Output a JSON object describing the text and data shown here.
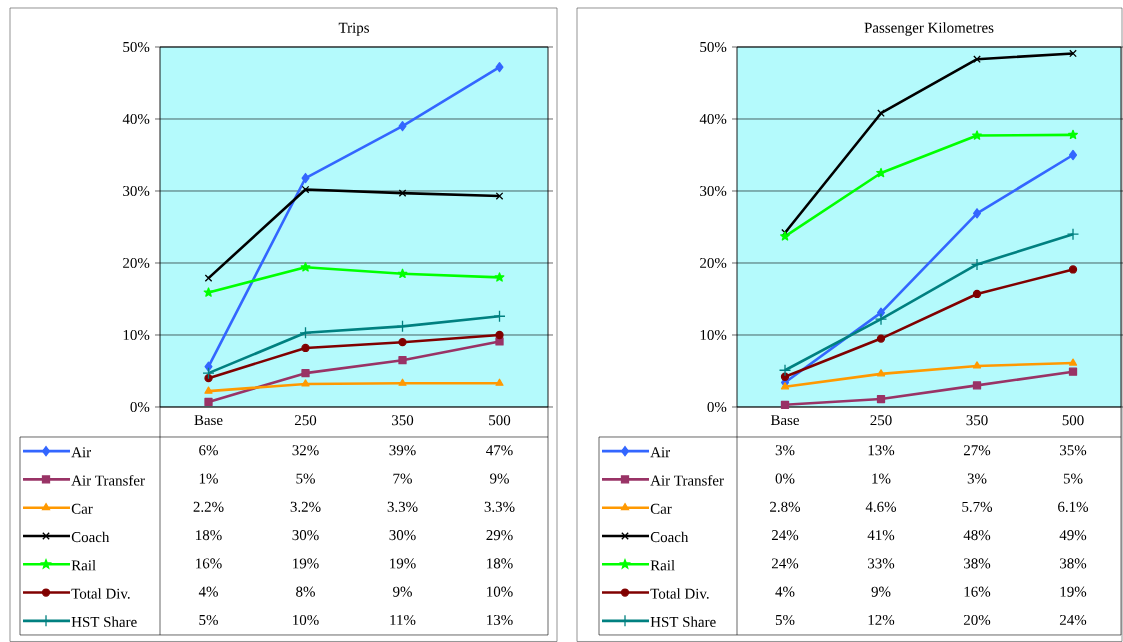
{
  "chart_data": [
    {
      "type": "line",
      "title": "Trips",
      "categories": [
        "Base",
        "250",
        "350",
        "500"
      ],
      "ylim": [
        0,
        50
      ],
      "yticks": [
        {
          "value": 0,
          "label": "0%"
        },
        {
          "value": 10,
          "label": "10%"
        },
        {
          "value": 20,
          "label": "20%"
        },
        {
          "value": 30,
          "label": "30%"
        },
        {
          "value": 40,
          "label": "40%"
        },
        {
          "value": 50,
          "label": "50%"
        }
      ],
      "grid": "y",
      "legend": "bottom",
      "series": [
        {
          "name": "Air",
          "color": "#3366ff",
          "marker": "diamond",
          "values": [
            5.6,
            31.8,
            39.0,
            47.2
          ],
          "value_labels": [
            "6%",
            "32%",
            "39%",
            "47%"
          ]
        },
        {
          "name": "Air Transfer",
          "color": "#993366",
          "marker": "square",
          "values": [
            0.7,
            4.7,
            6.5,
            9.1
          ],
          "value_labels": [
            "1%",
            "5%",
            "7%",
            "9%"
          ]
        },
        {
          "name": "Car",
          "color": "#ff9900",
          "marker": "triangle",
          "values": [
            2.2,
            3.2,
            3.3,
            3.3
          ],
          "value_labels": [
            "2.2%",
            "3.2%",
            "3.3%",
            "3.3%"
          ]
        },
        {
          "name": "Coach",
          "color": "#000000",
          "marker": "cross",
          "values": [
            17.9,
            30.2,
            29.7,
            29.3
          ],
          "value_labels": [
            "18%",
            "30%",
            "30%",
            "29%"
          ]
        },
        {
          "name": "Rail",
          "color": "#00ff00",
          "marker": "star",
          "values": [
            15.9,
            19.4,
            18.5,
            18.0
          ],
          "value_labels": [
            "16%",
            "19%",
            "19%",
            "18%"
          ]
        },
        {
          "name": "Total Div.",
          "color": "#800000",
          "marker": "circle",
          "values": [
            4.0,
            8.2,
            9.0,
            10.0
          ],
          "value_labels": [
            "4%",
            "8%",
            "9%",
            "10%"
          ]
        },
        {
          "name": "HST Share",
          "color": "#008080",
          "marker": "plus",
          "values": [
            4.7,
            10.3,
            11.2,
            12.6
          ],
          "value_labels": [
            "5%",
            "10%",
            "11%",
            "13%"
          ]
        }
      ]
    },
    {
      "type": "line",
      "title": "Passenger Kilometres",
      "categories": [
        "Base",
        "250",
        "350",
        "500"
      ],
      "ylim": [
        0,
        50
      ],
      "yticks": [
        {
          "value": 0,
          "label": "0%"
        },
        {
          "value": 10,
          "label": "10%"
        },
        {
          "value": 20,
          "label": "20%"
        },
        {
          "value": 30,
          "label": "30%"
        },
        {
          "value": 40,
          "label": "40%"
        },
        {
          "value": 50,
          "label": "50%"
        }
      ],
      "grid": "y",
      "legend": "bottom",
      "series": [
        {
          "name": "Air",
          "color": "#3366ff",
          "marker": "diamond",
          "values": [
            3.4,
            13.1,
            26.9,
            35.0
          ],
          "value_labels": [
            "3%",
            "13%",
            "27%",
            "35%"
          ]
        },
        {
          "name": "Air Transfer",
          "color": "#993366",
          "marker": "square",
          "values": [
            0.3,
            1.1,
            3.0,
            4.9
          ],
          "value_labels": [
            "0%",
            "1%",
            "3%",
            "5%"
          ]
        },
        {
          "name": "Car",
          "color": "#ff9900",
          "marker": "triangle",
          "values": [
            2.8,
            4.6,
            5.7,
            6.1
          ],
          "value_labels": [
            "2.8%",
            "4.6%",
            "5.7%",
            "6.1%"
          ]
        },
        {
          "name": "Coach",
          "color": "#000000",
          "marker": "cross",
          "values": [
            24.2,
            40.8,
            48.3,
            49.1
          ],
          "value_labels": [
            "24%",
            "41%",
            "48%",
            "49%"
          ]
        },
        {
          "name": "Rail",
          "color": "#00ff00",
          "marker": "star",
          "values": [
            23.7,
            32.5,
            37.7,
            37.8
          ],
          "value_labels": [
            "24%",
            "33%",
            "38%",
            "38%"
          ]
        },
        {
          "name": "Total Div.",
          "color": "#800000",
          "marker": "circle",
          "values": [
            4.2,
            9.5,
            15.7,
            19.1
          ],
          "value_labels": [
            "4%",
            "9%",
            "16%",
            "19%"
          ]
        },
        {
          "name": "HST Share",
          "color": "#008080",
          "marker": "plus",
          "values": [
            5.1,
            12.2,
            19.8,
            24.0
          ],
          "value_labels": [
            "5%",
            "12%",
            "20%",
            "24%"
          ]
        }
      ]
    }
  ]
}
